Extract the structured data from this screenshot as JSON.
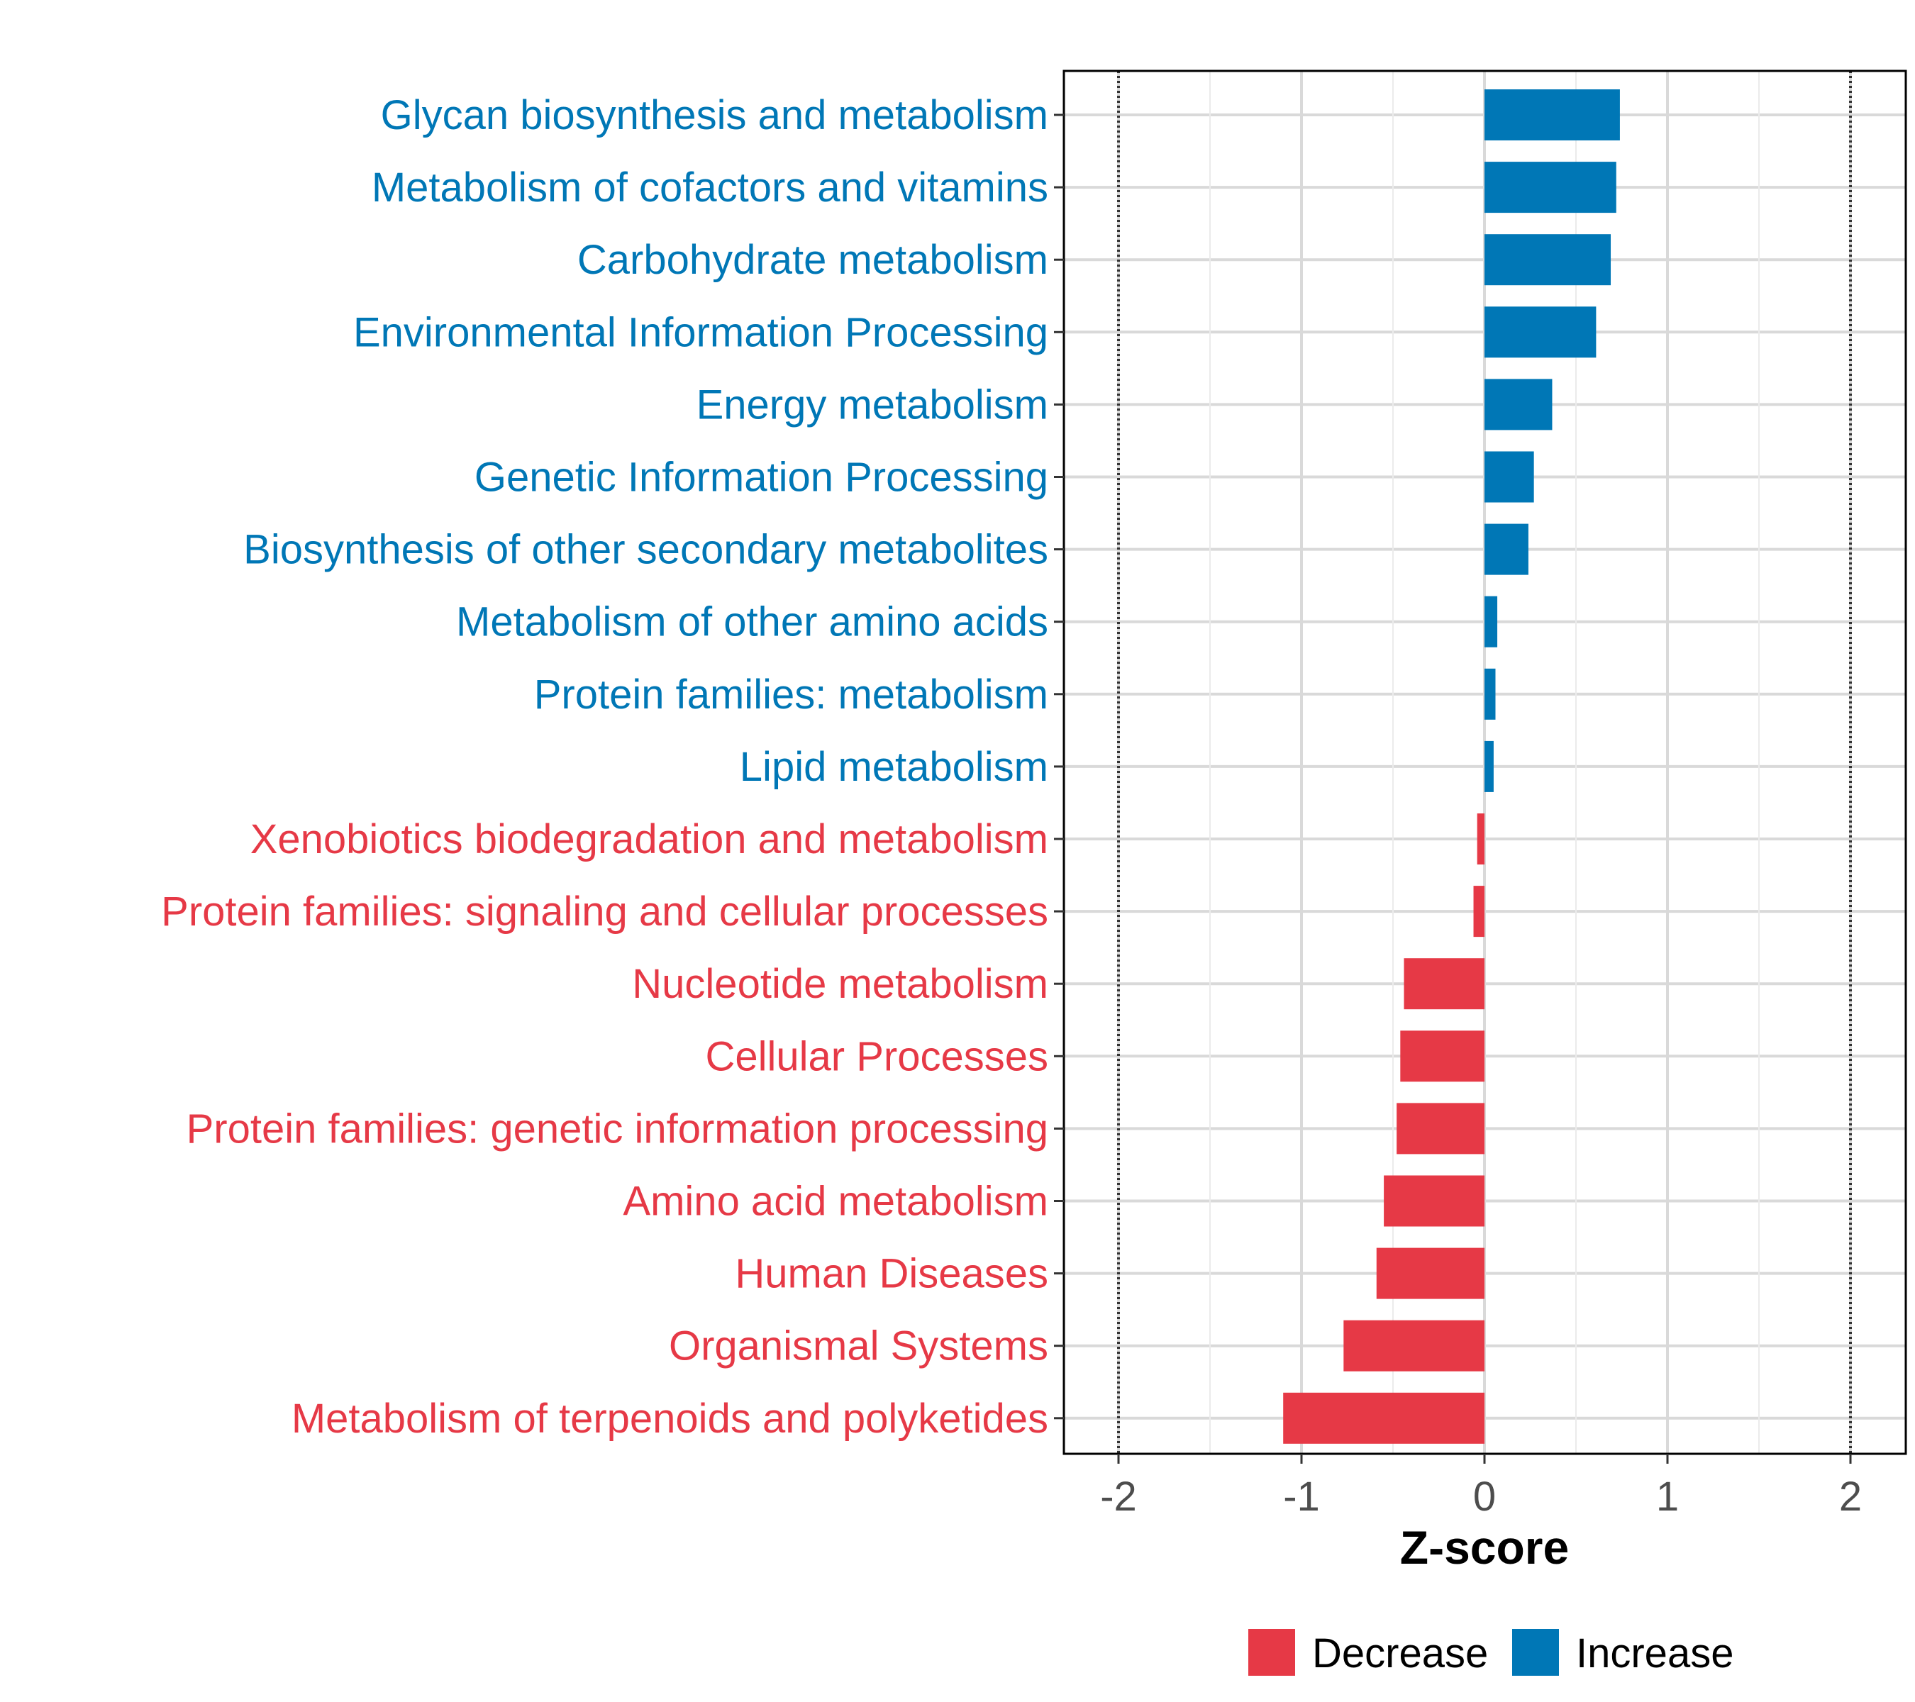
{
  "chart_data": {
    "type": "bar",
    "orientation": "horizontal",
    "xlabel": "Z-score",
    "xlim": [
      -2.3,
      2.3
    ],
    "xticks": [
      -2,
      -1,
      0,
      1,
      2
    ],
    "xtick_labels": [
      "-2",
      "-1",
      "0",
      "1",
      "2"
    ],
    "reference_lines": [
      -2,
      2
    ],
    "grid": true,
    "legend_position": "bottom",
    "colors": {
      "Decrease": "#e63946",
      "Increase": "#0077b6"
    },
    "categories": [
      "Glycan biosynthesis and metabolism",
      "Metabolism of cofactors and vitamins",
      "Carbohydrate metabolism",
      "Environmental Information Processing",
      "Energy metabolism",
      "Genetic Information Processing",
      "Biosynthesis of other secondary metabolites",
      "Metabolism of other amino acids",
      "Protein families: metabolism",
      "Lipid metabolism",
      "Xenobiotics biodegradation and metabolism",
      "Protein families: signaling and cellular processes",
      "Nucleotide metabolism",
      "Cellular Processes",
      "Protein families: genetic information processing",
      "Amino acid metabolism",
      "Human Diseases",
      "Organismal Systems",
      "Metabolism of terpenoids and polyketides"
    ],
    "values": [
      0.74,
      0.72,
      0.69,
      0.61,
      0.37,
      0.27,
      0.24,
      0.07,
      0.06,
      0.05,
      -0.04,
      -0.06,
      -0.44,
      -0.46,
      -0.48,
      -0.55,
      -0.59,
      -0.77,
      -1.1
    ],
    "groups": [
      "Increase",
      "Increase",
      "Increase",
      "Increase",
      "Increase",
      "Increase",
      "Increase",
      "Increase",
      "Increase",
      "Increase",
      "Decrease",
      "Decrease",
      "Decrease",
      "Decrease",
      "Decrease",
      "Decrease",
      "Decrease",
      "Decrease",
      "Decrease"
    ],
    "legend": [
      {
        "name": "Decrease"
      },
      {
        "name": "Increase"
      }
    ]
  }
}
